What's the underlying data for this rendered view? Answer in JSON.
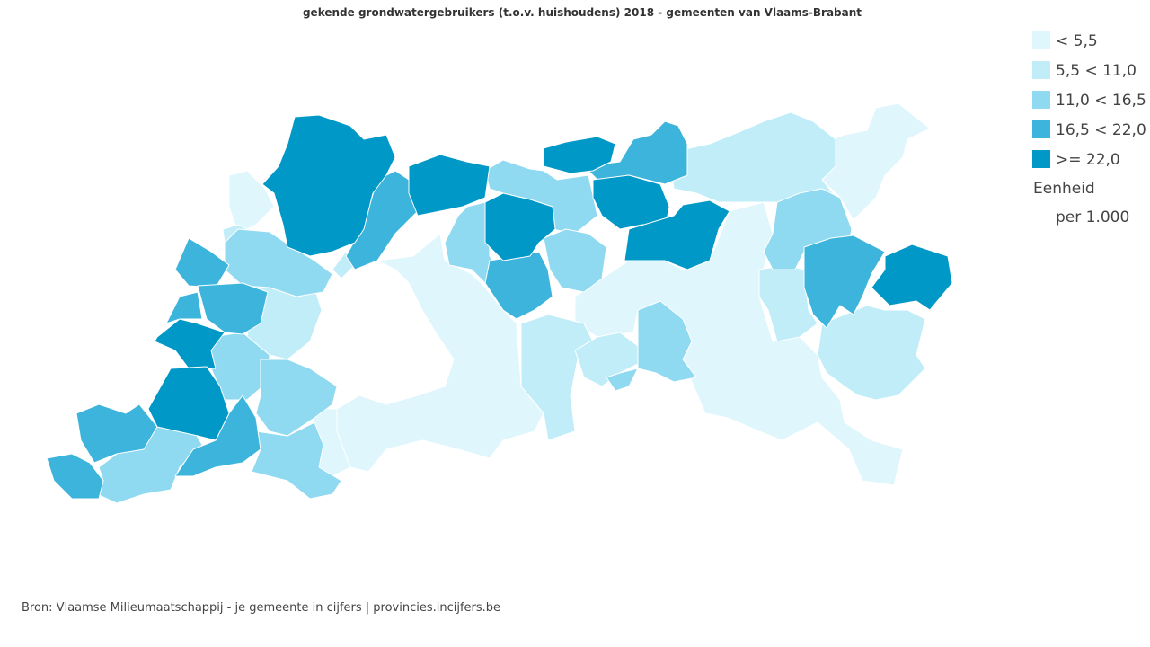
{
  "title": "gekende grondwatergebruikers (t.o.v. huishoudens) 2018 - gemeenten van Vlaams-Brabant",
  "legend": {
    "items": [
      {
        "label": "< 5,5",
        "color": "#dff6fc"
      },
      {
        "label": "5,5 < 11,0",
        "color": "#c1edf9"
      },
      {
        "label": "11,0 < 16,5",
        "color": "#8fd9f1"
      },
      {
        "label": "16,5 < 22,0",
        "color": "#3cb4dc"
      },
      {
        "label": ">= 22,0",
        "color": "#0098c6"
      }
    ],
    "unit_title": "Eenheid",
    "unit": "per 1.000"
  },
  "source": "Bron: Vlaamse Milieumaatschappij - je gemeente in cijfers | provincies.incijfers.be"
}
